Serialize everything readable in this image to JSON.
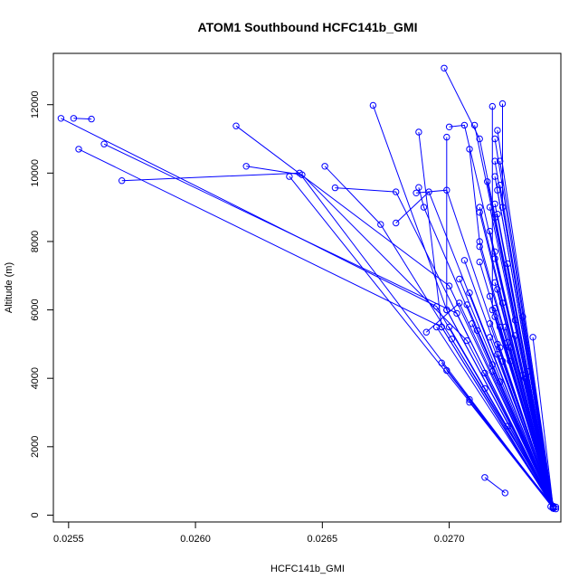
{
  "chart_data": {
    "type": "line",
    "title": "ATOM1 Southbound HCFC141b_GMI",
    "xlabel": "HCFC141b_GMI",
    "ylabel": "Altitude (m)",
    "xlim": [
      0.02544,
      0.02744
    ],
    "ylim": [
      -200,
      13500
    ],
    "x_ticks": [
      0.0255,
      0.026,
      0.0265,
      0.027
    ],
    "x_tick_labels": [
      "0.0255",
      "0.0260",
      "0.0265",
      "0.0270"
    ],
    "y_ticks": [
      0,
      2000,
      4000,
      6000,
      8000,
      10000,
      12000
    ],
    "y_tick_labels": [
      "0",
      "2000",
      "4000",
      "6000",
      "8000",
      "10000",
      "12000"
    ],
    "grid": false,
    "legend": "none",
    "color": "#0000ff",
    "segments": [
      {
        "name": "",
        "points": [
          [
            0.02547,
            11600
          ],
          [
            0.02695,
            6100
          ],
          [
            0.02741,
            250
          ]
        ]
      },
      {
        "name": "",
        "points": [
          [
            0.02559,
            11580
          ],
          [
            0.02552,
            11600
          ]
        ]
      },
      {
        "name": "",
        "points": [
          [
            0.02554,
            10700
          ],
          [
            0.02697,
            5500
          ],
          [
            0.02741,
            230
          ]
        ]
      },
      {
        "name": "",
        "points": [
          [
            0.02564,
            10850
          ],
          [
            0.02703,
            5900
          ],
          [
            0.02741,
            220
          ]
        ]
      },
      {
        "name": "",
        "points": [
          [
            0.02571,
            9780
          ],
          [
            0.02641,
            10000
          ],
          [
            0.02741,
            200
          ]
        ]
      },
      {
        "name": "",
        "points": [
          [
            0.02616,
            11380
          ],
          [
            0.027,
            6700
          ],
          [
            0.02741,
            240
          ]
        ]
      },
      {
        "name": "",
        "points": [
          [
            0.0262,
            10200
          ],
          [
            0.02642,
            9950
          ],
          [
            0.02707,
            5100
          ],
          [
            0.02741,
            210
          ]
        ]
      },
      {
        "name": "",
        "points": [
          [
            0.02637,
            9900
          ],
          [
            0.02741,
            260
          ]
        ]
      },
      {
        "name": "",
        "points": [
          [
            0.02651,
            10200
          ],
          [
            0.02673,
            8500
          ],
          [
            0.02742,
            240
          ]
        ]
      },
      {
        "name": "",
        "points": [
          [
            0.02655,
            9570
          ],
          [
            0.02679,
            9450
          ],
          [
            0.02741,
            230
          ]
        ]
      },
      {
        "name": "",
        "points": [
          [
            0.0267,
            11980
          ],
          [
            0.02699,
            6000
          ],
          [
            0.02741,
            200
          ]
        ]
      },
      {
        "name": "",
        "points": [
          [
            0.02679,
            8540
          ],
          [
            0.02692,
            9450
          ],
          [
            0.02741,
            220
          ]
        ]
      },
      {
        "name": "",
        "points": [
          [
            0.02687,
            9420
          ],
          [
            0.02699,
            9500
          ],
          [
            0.02741,
            240
          ]
        ]
      },
      {
        "name": "",
        "points": [
          [
            0.02688,
            9580
          ],
          [
            0.0269,
            9000
          ],
          [
            0.02741,
            210
          ]
        ]
      },
      {
        "name": "",
        "points": [
          [
            0.02688,
            11200
          ],
          [
            0.02697,
            5500
          ],
          [
            0.02741,
            200
          ]
        ]
      },
      {
        "name": "",
        "points": [
          [
            0.02691,
            5350
          ],
          [
            0.02704,
            6200
          ],
          [
            0.02741,
            230
          ]
        ]
      },
      {
        "name": "",
        "points": [
          [
            0.02695,
            5500
          ],
          [
            0.02741,
            250
          ]
        ]
      },
      {
        "name": "",
        "points": [
          [
            0.02697,
            4450
          ],
          [
            0.02741,
            220
          ]
        ]
      },
      {
        "name": "",
        "points": [
          [
            0.02699,
            4230
          ],
          [
            0.02741,
            210
          ]
        ]
      },
      {
        "name": "",
        "points": [
          [
            0.02699,
            11050
          ],
          [
            0.02699,
            6000
          ],
          [
            0.02741,
            240
          ]
        ]
      },
      {
        "name": "",
        "points": [
          [
            0.027,
            11350
          ],
          [
            0.02706,
            11400
          ],
          [
            0.02741,
            200
          ]
        ]
      },
      {
        "name": "",
        "points": [
          [
            0.02698,
            13070
          ],
          [
            0.02712,
            11000
          ],
          [
            0.02741,
            230
          ]
        ]
      },
      {
        "name": "",
        "points": [
          [
            0.027,
            5500
          ],
          [
            0.02741,
            260
          ]
        ]
      },
      {
        "name": "",
        "points": [
          [
            0.02701,
            5150
          ],
          [
            0.02741,
            220
          ]
        ]
      },
      {
        "name": "",
        "points": [
          [
            0.02704,
            6900
          ],
          [
            0.02741,
            240
          ]
        ]
      },
      {
        "name": "",
        "points": [
          [
            0.02706,
            7450
          ],
          [
            0.02741,
            210
          ]
        ]
      },
      {
        "name": "",
        "points": [
          [
            0.02707,
            6150
          ],
          [
            0.02741,
            230
          ]
        ]
      },
      {
        "name": "",
        "points": [
          [
            0.02708,
            3300
          ],
          [
            0.02741,
            200
          ]
        ]
      },
      {
        "name": "",
        "points": [
          [
            0.02708,
            3380
          ],
          [
            0.02741,
            250
          ]
        ]
      },
      {
        "name": "",
        "points": [
          [
            0.02708,
            6500
          ],
          [
            0.02741,
            220
          ]
        ]
      },
      {
        "name": "",
        "points": [
          [
            0.02708,
            10700
          ],
          [
            0.02712,
            8000
          ],
          [
            0.02741,
            240
          ]
        ]
      },
      {
        "name": "",
        "points": [
          [
            0.02709,
            5600
          ],
          [
            0.02741,
            210
          ]
        ]
      },
      {
        "name": "",
        "points": [
          [
            0.0271,
            11400
          ],
          [
            0.02741,
            230
          ]
        ]
      },
      {
        "name": "",
        "points": [
          [
            0.02711,
            5400
          ],
          [
            0.02741,
            250
          ]
        ]
      },
      {
        "name": "",
        "points": [
          [
            0.02712,
            9000
          ],
          [
            0.02741,
            200
          ]
        ]
      },
      {
        "name": "",
        "points": [
          [
            0.02712,
            8850
          ],
          [
            0.02741,
            220
          ]
        ]
      },
      {
        "name": "",
        "points": [
          [
            0.02712,
            7850
          ],
          [
            0.02741,
            240
          ]
        ]
      },
      {
        "name": "",
        "points": [
          [
            0.02712,
            7400
          ],
          [
            0.02741,
            210
          ]
        ]
      },
      {
        "name": "",
        "points": [
          [
            0.02714,
            4150
          ],
          [
            0.02741,
            230
          ]
        ]
      },
      {
        "name": "",
        "points": [
          [
            0.02714,
            3700
          ],
          [
            0.02741,
            250
          ]
        ]
      },
      {
        "name": "",
        "points": [
          [
            0.02715,
            9750
          ],
          [
            0.02741,
            200
          ]
        ]
      },
      {
        "name": "",
        "points": [
          [
            0.02716,
            9000
          ],
          [
            0.02741,
            220
          ]
        ]
      },
      {
        "name": "",
        "points": [
          [
            0.02716,
            8300
          ],
          [
            0.02741,
            240
          ]
        ]
      },
      {
        "name": "",
        "points": [
          [
            0.02716,
            6400
          ],
          [
            0.02741,
            210
          ]
        ]
      },
      {
        "name": "",
        "points": [
          [
            0.02716,
            5600
          ],
          [
            0.02741,
            230
          ]
        ]
      },
      {
        "name": "",
        "points": [
          [
            0.02716,
            5200
          ],
          [
            0.02741,
            250
          ]
        ]
      },
      {
        "name": "",
        "points": [
          [
            0.02717,
            11950
          ],
          [
            0.02717,
            6000
          ],
          [
            0.02741,
            200
          ]
        ]
      },
      {
        "name": "",
        "points": [
          [
            0.02717,
            4400
          ],
          [
            0.02741,
            220
          ]
        ]
      },
      {
        "name": "",
        "points": [
          [
            0.02717,
            4200
          ],
          [
            0.02741,
            240
          ]
        ]
      },
      {
        "name": "",
        "points": [
          [
            0.02718,
            11000
          ],
          [
            0.02741,
            210
          ]
        ]
      },
      {
        "name": "",
        "points": [
          [
            0.02718,
            10350
          ],
          [
            0.02741,
            230
          ]
        ]
      },
      {
        "name": "",
        "points": [
          [
            0.02718,
            9900
          ],
          [
            0.02741,
            250
          ]
        ]
      },
      {
        "name": "",
        "points": [
          [
            0.02718,
            9100
          ],
          [
            0.02741,
            200
          ]
        ]
      },
      {
        "name": "",
        "points": [
          [
            0.02718,
            8700
          ],
          [
            0.02741,
            220
          ]
        ]
      },
      {
        "name": "",
        "points": [
          [
            0.02718,
            7700
          ],
          [
            0.02741,
            240
          ]
        ]
      },
      {
        "name": "",
        "points": [
          [
            0.02718,
            7500
          ],
          [
            0.02741,
            210
          ]
        ]
      },
      {
        "name": "",
        "points": [
          [
            0.02718,
            6800
          ],
          [
            0.02741,
            230
          ]
        ]
      },
      {
        "name": "",
        "points": [
          [
            0.02718,
            6050
          ],
          [
            0.02741,
            250
          ]
        ]
      },
      {
        "name": "",
        "points": [
          [
            0.02718,
            5800
          ],
          [
            0.02741,
            200
          ]
        ]
      },
      {
        "name": "",
        "points": [
          [
            0.02719,
            11250
          ],
          [
            0.02741,
            220
          ]
        ]
      },
      {
        "name": "",
        "points": [
          [
            0.02719,
            9500
          ],
          [
            0.02741,
            240
          ]
        ]
      },
      {
        "name": "",
        "points": [
          [
            0.02719,
            8800
          ],
          [
            0.02741,
            210
          ]
        ]
      },
      {
        "name": "",
        "points": [
          [
            0.02719,
            6600
          ],
          [
            0.02741,
            230
          ]
        ]
      },
      {
        "name": "",
        "points": [
          [
            0.02719,
            5000
          ],
          [
            0.02741,
            250
          ]
        ]
      },
      {
        "name": "",
        "points": [
          [
            0.02719,
            4700
          ],
          [
            0.02741,
            200
          ]
        ]
      },
      {
        "name": "",
        "points": [
          [
            0.0272,
            10350
          ],
          [
            0.02741,
            220
          ]
        ]
      },
      {
        "name": "",
        "points": [
          [
            0.0272,
            9650
          ],
          [
            0.02741,
            240
          ]
        ]
      },
      {
        "name": "",
        "points": [
          [
            0.0272,
            5500
          ],
          [
            0.02741,
            210
          ]
        ]
      },
      {
        "name": "",
        "points": [
          [
            0.0272,
            4900
          ],
          [
            0.02741,
            230
          ]
        ]
      },
      {
        "name": "",
        "points": [
          [
            0.0272,
            3900
          ],
          [
            0.02741,
            250
          ]
        ]
      },
      {
        "name": "",
        "points": [
          [
            0.02721,
            12030
          ],
          [
            0.02721,
            9000
          ],
          [
            0.02741,
            200
          ]
        ]
      },
      {
        "name": "",
        "points": [
          [
            0.02721,
            6200
          ],
          [
            0.02741,
            220
          ]
        ]
      },
      {
        "name": "",
        "points": [
          [
            0.02721,
            4500
          ],
          [
            0.02741,
            240
          ]
        ]
      },
      {
        "name": "",
        "points": [
          [
            0.02722,
            650
          ],
          [
            0.02714,
            1100
          ]
        ]
      },
      {
        "name": "",
        "points": [
          [
            0.02722,
            5500
          ],
          [
            0.02741,
            210
          ]
        ]
      },
      {
        "name": "",
        "points": [
          [
            0.02723,
            7350
          ],
          [
            0.02741,
            230
          ]
        ]
      },
      {
        "name": "",
        "points": [
          [
            0.02723,
            5050
          ],
          [
            0.02741,
            250
          ]
        ]
      },
      {
        "name": "",
        "points": [
          [
            0.02723,
            2600
          ],
          [
            0.02741,
            200
          ]
        ]
      },
      {
        "name": "",
        "points": [
          [
            0.02724,
            4900
          ],
          [
            0.02741,
            220
          ]
        ]
      },
      {
        "name": "",
        "points": [
          [
            0.02724,
            4500
          ],
          [
            0.02741,
            240
          ]
        ]
      },
      {
        "name": "",
        "points": [
          [
            0.02726,
            5250
          ],
          [
            0.02741,
            210
          ]
        ]
      },
      {
        "name": "",
        "points": [
          [
            0.02726,
            5700
          ],
          [
            0.02741,
            230
          ]
        ]
      },
      {
        "name": "",
        "points": [
          [
            0.02729,
            5800
          ],
          [
            0.02741,
            250
          ]
        ]
      },
      {
        "name": "",
        "points": [
          [
            0.02729,
            4100
          ],
          [
            0.02741,
            200
          ]
        ]
      },
      {
        "name": "",
        "points": [
          [
            0.0273,
            4000
          ],
          [
            0.02741,
            220
          ]
        ]
      },
      {
        "name": "",
        "points": [
          [
            0.02731,
            4200
          ],
          [
            0.02741,
            240
          ]
        ]
      },
      {
        "name": "",
        "points": [
          [
            0.02733,
            5200
          ],
          [
            0.02741,
            210
          ]
        ]
      },
      {
        "name": "",
        "points": [
          [
            0.0274,
            250
          ],
          [
            0.02741,
            230
          ]
        ]
      },
      {
        "name": "",
        "points": [
          [
            0.02741,
            200
          ],
          [
            0.02742,
            180
          ]
        ]
      }
    ]
  }
}
